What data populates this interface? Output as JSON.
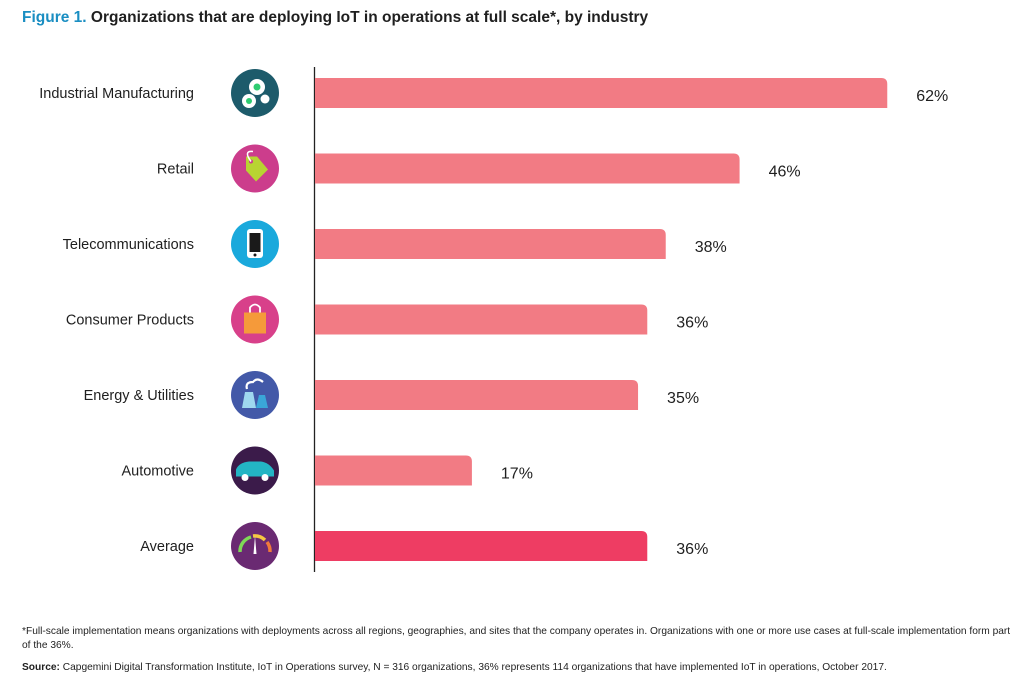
{
  "title": {
    "prefix": "Figure 1.",
    "text": "Organizations that are deploying IoT in operations at full scale*, by industry"
  },
  "chart_data": {
    "type": "bar",
    "orientation": "horizontal",
    "categories": [
      "Industrial Manufacturing",
      "Retail",
      "Telecommunications",
      "Consumer Products",
      "Energy & Utilities",
      "Automotive",
      "Average"
    ],
    "values": [
      62,
      46,
      38,
      36,
      35,
      17,
      36
    ],
    "value_labels": [
      "62%",
      "46%",
      "38%",
      "36%",
      "35%",
      "17%",
      "36%"
    ],
    "unit": "%",
    "xlim": [
      0,
      100
    ],
    "grid": false,
    "legend": "none",
    "icons": [
      "gears-icon",
      "price-tag-icon",
      "smartphone-icon",
      "shopping-bag-icon",
      "power-plant-icon",
      "car-icon",
      "gauge-icon"
    ],
    "icon_colors": [
      "#1d5b6b",
      "#cc3d8c",
      "#1aa9dc",
      "#d8408a",
      "#4359a8",
      "#3b1b4a",
      "#6a2a72"
    ],
    "bar_color": "#f27b84",
    "average_bar_color": "#ee3d63"
  },
  "footnote": "*Full-scale implementation means organizations with deployments across all regions, geographies, and sites that the company operates in. Organizations with one or more use cases at full-scale implementation form part of the 36%.",
  "source": {
    "label": "Source:",
    "text": "Capgemini Digital Transformation Institute, IoT in Operations survey, N = 316 organizations, 36% represents 114 organizations that have implemented IoT in operations, October 2017."
  }
}
